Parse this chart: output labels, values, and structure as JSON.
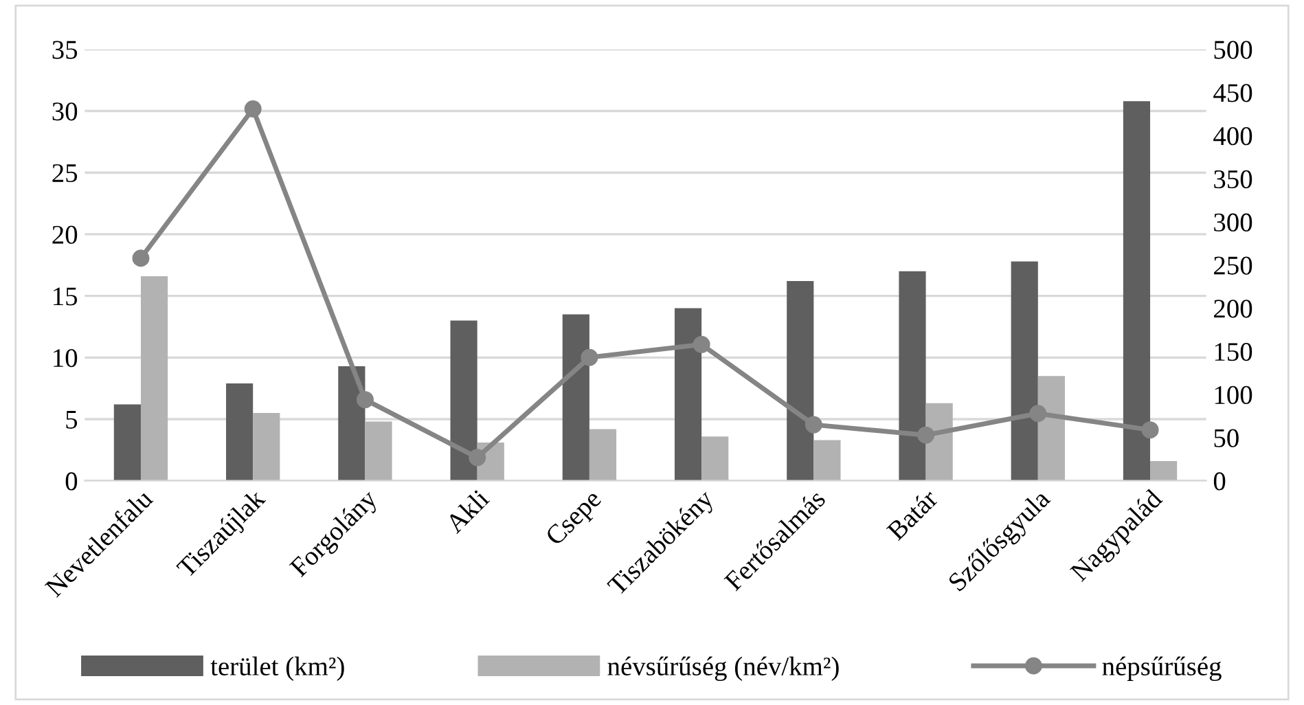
{
  "chart_data": {
    "type": "bar",
    "categories": [
      "Nevetlenfalu",
      "Tiszaújlak",
      "Forgolány",
      "Akli",
      "Csepe",
      "Tiszabökény",
      "Fertősalmás",
      "Batár",
      "Szőlősgyula",
      "Nagypalád"
    ],
    "series": [
      {
        "name": "terület (km²)",
        "color": "#5f5f5f",
        "values": [
          6.2,
          7.9,
          9.3,
          13.0,
          13.5,
          14.0,
          16.2,
          17.0,
          17.8,
          30.8
        ]
      },
      {
        "name": "névsűrűség (név/km²)",
        "color": "#b2b2b2",
        "values": [
          16.6,
          5.5,
          4.8,
          3.1,
          4.2,
          3.6,
          3.3,
          6.3,
          8.5,
          1.6
        ]
      },
      {
        "name": "népsűrűség",
        "type": "line",
        "axis": "y2",
        "color": "#858585",
        "marker": "circle",
        "values": [
          258,
          431,
          94,
          27,
          143,
          158,
          65,
          53,
          78,
          59
        ]
      }
    ],
    "ylim": [
      0,
      35
    ],
    "yticks": [
      0,
      5,
      10,
      15,
      20,
      25,
      30,
      35
    ],
    "y2lim": [
      0,
      500
    ],
    "y2ticks": [
      0,
      50,
      100,
      150,
      200,
      250,
      300,
      350,
      400,
      450,
      500
    ],
    "grid": "y",
    "legend": "bottom"
  }
}
